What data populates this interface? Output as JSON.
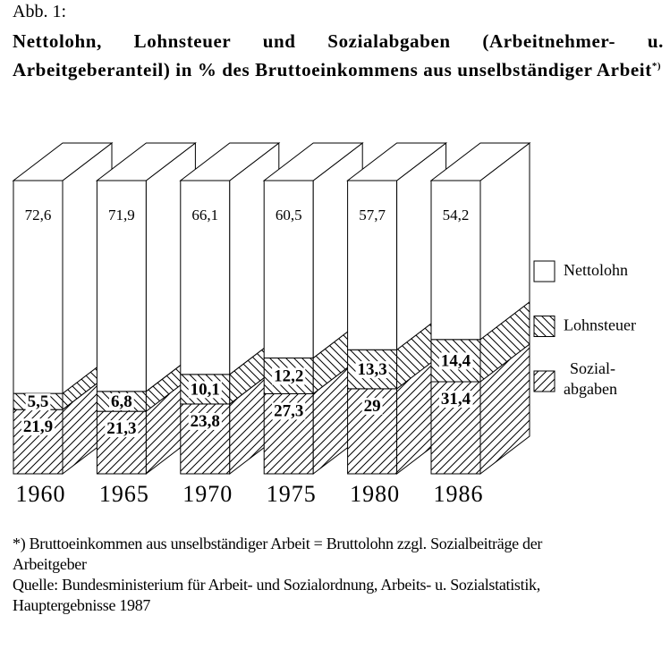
{
  "chart_data": {
    "type": "bar3d_stacked",
    "figure_label": "Abb. 1:",
    "title": "Nettolohn, Lohnsteuer und Sozialabgaben (Arbeitnehmer- u. Arbeitgeberanteil) in % des Bruttoeinkommens aus unselbständiger Arbeit",
    "title_note": "*)",
    "categories": [
      "1960",
      "1965",
      "1970",
      "1975",
      "1980",
      "1986"
    ],
    "ylim": [
      0,
      100
    ],
    "series": [
      {
        "name": "Sozial- abgaben",
        "color": "#ffffff",
        "hatch": "slash",
        "values": [
          21.9,
          21.3,
          23.8,
          27.3,
          29,
          31.4
        ],
        "value_labels": [
          "21,9",
          "21,3",
          "23,8",
          "27,3",
          "29",
          "31,4"
        ]
      },
      {
        "name": "Lohnsteuer",
        "color": "#ffffff",
        "hatch": "backslash",
        "values": [
          5.5,
          6.8,
          10.1,
          12.2,
          13.3,
          14.4
        ],
        "value_labels": [
          "5,5",
          "6,8",
          "10,1",
          "12,2",
          "13,3",
          "14,4"
        ]
      },
      {
        "name": "Nettolohn",
        "color": "#ffffff",
        "hatch": "none",
        "values": [
          72.6,
          71.9,
          66.1,
          60.5,
          57.7,
          54.2
        ],
        "value_labels": [
          "72,6",
          "71,9",
          "66,1",
          "60,5",
          "57,7",
          "54,2"
        ]
      }
    ],
    "footnote": "*) Bruttoeinkommen aus unselbständiger Arbeit = Bruttolohn zzgl. Sozialbeiträge der Arbeitgeber",
    "source": "Quelle: Bundesministerium für Arbeit- und Sozialordnung, Arbeits- u. Sozialstatistik, Hauptergebnisse 1987"
  }
}
